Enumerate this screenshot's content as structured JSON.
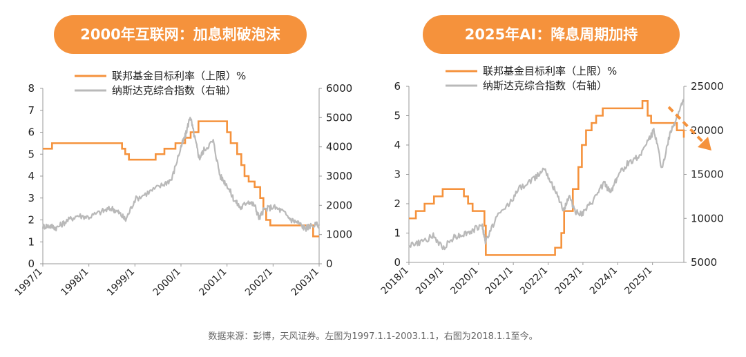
{
  "titles": {
    "left": "2000年互联网：加息刺破泡沫",
    "right": "2025年AI：降息周期加持"
  },
  "footer": "数据来源：彭博，天风证券。左图为1997.1.1-2003.1.1，右图为2018.1.1至今。",
  "colors": {
    "rate": "#f5923c",
    "index": "#b9b9b9",
    "accent": "#f5923c",
    "axis": "#999999"
  },
  "chart_data": [
    {
      "type": "line",
      "title": "2000年互联网：加息刺破泡沫",
      "legend": [
        "联邦基金目标利率（上限）%",
        "纳斯达克综合指数（右轴）"
      ],
      "x_ticks": [
        "1997/1",
        "1998/1",
        "1999/1",
        "2000/1",
        "2001/1",
        "2002/1",
        "2003/1"
      ],
      "x_range": [
        1997.0,
        2003.0
      ],
      "y_left": {
        "range": [
          0,
          8
        ],
        "ticks": [
          "0",
          "1",
          "2",
          "3",
          "4",
          "5",
          "6",
          "7",
          "8"
        ]
      },
      "y_right": {
        "range": [
          0,
          6000
        ],
        "ticks": [
          "0",
          "1000",
          "2000",
          "3000",
          "4000",
          "5000",
          "6000"
        ]
      },
      "series": [
        {
          "name": "联邦基金目标利率（上限）%",
          "axis": "left",
          "step": true,
          "x": [
            1997.0,
            1997.2,
            1998.72,
            1998.79,
            1998.87,
            1999.45,
            1999.64,
            1999.88,
            2000.09,
            2000.21,
            2000.38,
            2001.0,
            2001.08,
            2001.22,
            2001.31,
            2001.38,
            2001.47,
            2001.6,
            2001.72,
            2001.79,
            2001.85,
            2001.94,
            2002.87,
            2003.0
          ],
          "values": [
            5.25,
            5.5,
            5.25,
            5.0,
            4.75,
            5.0,
            5.25,
            5.5,
            5.75,
            6.0,
            6.5,
            6.0,
            5.5,
            5.0,
            4.5,
            4.0,
            3.75,
            3.5,
            3.0,
            2.5,
            2.0,
            1.75,
            1.25,
            1.25
          ]
        },
        {
          "name": "纳斯达克综合指数（右轴）",
          "axis": "right",
          "x": [
            1997.0,
            1997.15,
            1997.3,
            1997.5,
            1997.75,
            1998.0,
            1998.3,
            1998.5,
            1998.65,
            1998.8,
            1999.0,
            1999.3,
            1999.6,
            1999.8,
            2000.0,
            2000.1,
            2000.2,
            2000.3,
            2000.4,
            2000.5,
            2000.7,
            2000.85,
            2001.0,
            2001.15,
            2001.3,
            2001.45,
            2001.6,
            2001.7,
            2001.8,
            2002.0,
            2002.2,
            2002.4,
            2002.55,
            2002.7,
            2002.8,
            2003.0
          ],
          "values": [
            1280,
            1300,
            1230,
            1450,
            1650,
            1600,
            1800,
            1900,
            1750,
            1500,
            2200,
            2450,
            2700,
            2900,
            4000,
            4400,
            5050,
            4300,
            3600,
            3900,
            4200,
            3000,
            2700,
            2200,
            1900,
            2150,
            2000,
            1550,
            1850,
            1950,
            1800,
            1500,
            1400,
            1200,
            1300,
            1340
          ]
        }
      ]
    },
    {
      "type": "line",
      "title": "2025年AI：降息周期加持",
      "legend": [
        "联邦基金目标利率（上限）%",
        "纳斯达克综合指数（右轴）"
      ],
      "x_ticks": [
        "2018/1",
        "2019/1",
        "2020/1",
        "2021/1",
        "2022/1",
        "2023/1",
        "2024/1",
        "2025/1"
      ],
      "x_range": [
        2018.0,
        2025.9
      ],
      "y_left": {
        "range": [
          0,
          6
        ],
        "ticks": [
          "0",
          "1",
          "2",
          "3",
          "4",
          "5",
          "6"
        ]
      },
      "y_right": {
        "range": [
          5000,
          25000
        ],
        "ticks": [
          "5000",
          "10000",
          "15000",
          "20000",
          "25000"
        ]
      },
      "series": [
        {
          "name": "联邦基金目标利率（上限）%",
          "axis": "left",
          "step": true,
          "x": [
            2018.0,
            2018.2,
            2018.45,
            2018.72,
            2018.97,
            2019.58,
            2019.7,
            2019.83,
            2020.17,
            2020.21,
            2022.2,
            2022.38,
            2022.46,
            2022.71,
            2022.87,
            2022.97,
            2023.09,
            2023.25,
            2023.38,
            2023.57,
            2024.71,
            2024.86,
            2024.96,
            2025.7,
            2025.9
          ],
          "values": [
            1.5,
            1.75,
            2.0,
            2.25,
            2.5,
            2.25,
            2.0,
            1.75,
            1.25,
            0.25,
            0.5,
            1.0,
            1.75,
            2.5,
            3.25,
            4.0,
            4.5,
            4.75,
            5.0,
            5.25,
            5.5,
            5.0,
            4.75,
            4.5,
            4.25
          ]
        },
        {
          "name": "纳斯达克综合指数（右轴）",
          "axis": "right",
          "x": [
            2018.0,
            2018.3,
            2018.7,
            2018.97,
            2019.3,
            2019.5,
            2019.8,
            2020.1,
            2020.2,
            2020.5,
            2020.9,
            2021.2,
            2021.6,
            2021.9,
            2022.15,
            2022.45,
            2022.6,
            2022.8,
            2023.0,
            2023.3,
            2023.6,
            2023.8,
            2024.0,
            2024.3,
            2024.6,
            2024.9,
            2025.05,
            2025.27,
            2025.5,
            2025.7,
            2025.9
          ],
          "values": [
            7000,
            7200,
            8000,
            6600,
            7900,
            8100,
            8500,
            9300,
            7300,
            10000,
            11800,
            13500,
            14500,
            15800,
            13500,
            11000,
            12500,
            10700,
            10500,
            12000,
            14000,
            13000,
            14800,
            16300,
            17000,
            19000,
            20000,
            15600,
            19500,
            21500,
            23500
          ]
        }
      ]
    }
  ]
}
